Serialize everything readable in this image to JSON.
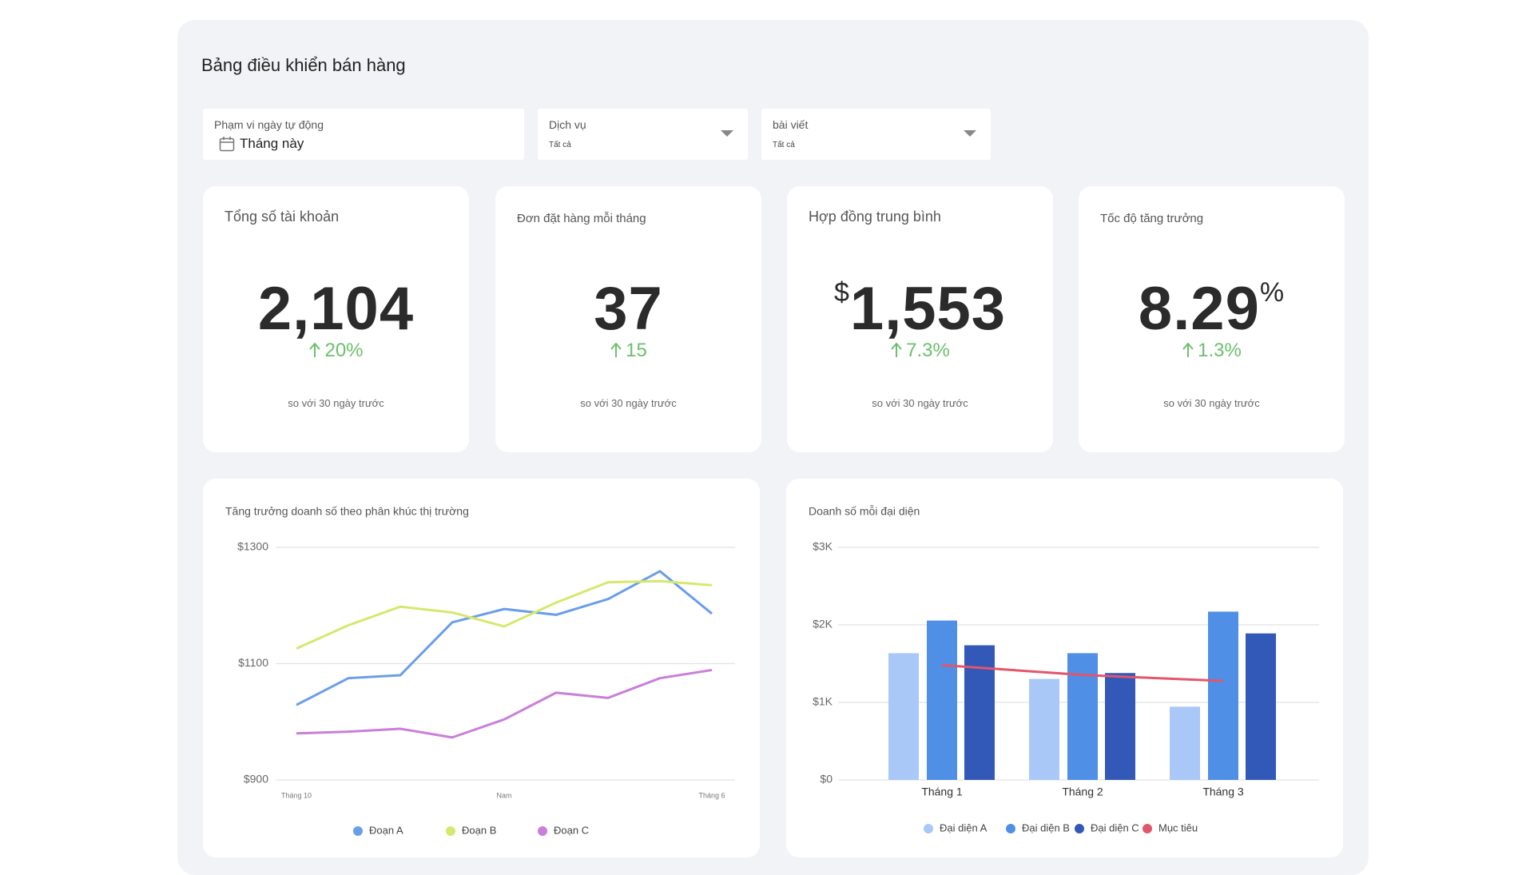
{
  "header": {
    "title": "Bảng điều khiển bán hàng"
  },
  "filters": [
    {
      "label": "Phạm vi ngày tự động",
      "value": "Tháng này"
    },
    {
      "label": "Dịch vụ",
      "value": "Tất cả"
    },
    {
      "label": "bài viết",
      "value": "Tất cả"
    }
  ],
  "kpis": [
    {
      "title": "Tổng số tài khoản",
      "value": "2,104",
      "delta": "20%",
      "note": "so với 30 ngày trước"
    },
    {
      "title": "Đơn đặt hàng mỗi tháng",
      "value": "37",
      "delta": "15",
      "note": "so với 30 ngày trước"
    },
    {
      "title": "Hợp đồng trung bình",
      "prefix": "$",
      "value": "1,553",
      "delta": "7.3%",
      "note": "so với 30 ngày trước"
    },
    {
      "title": "Tốc độ tăng trưởng",
      "value": "8.29",
      "suffix": "%",
      "delta": "1.3%",
      "note": "so với 30 ngày trước"
    }
  ],
  "chart_data": [
    {
      "type": "line",
      "title": "Tăng trưởng doanh số theo phân khúc thị trường",
      "categories": [
        "Tháng 10",
        null,
        null,
        null,
        "Nam",
        null,
        null,
        null,
        "Tháng 6"
      ],
      "series": [
        {
          "name": "Đoạn A",
          "color": "#6a9ee8",
          "values": [
            1029,
            1075,
            1080,
            1171,
            1194,
            1184,
            1211,
            1259,
            1186
          ]
        },
        {
          "name": "Đoạn B",
          "color": "#d6e86c",
          "values": [
            1126,
            1166,
            1198,
            1188,
            1164,
            1205,
            1240,
            1242,
            1235
          ]
        },
        {
          "name": "Đoạn C",
          "color": "#c97fd8",
          "values": [
            980,
            983,
            988,
            973,
            1004,
            1050,
            1041,
            1075,
            1089
          ]
        }
      ],
      "ylim": [
        900,
        1300
      ],
      "yticks": [
        {
          "value": 900,
          "label": "$900"
        },
        {
          "value": 1100,
          "label": "$1100"
        },
        {
          "value": 1300,
          "label": "$1300"
        }
      ],
      "grid": true,
      "legend": "bottom"
    },
    {
      "type": "bar",
      "title": "Doanh số mỗi đại diện",
      "categories": [
        "Tháng 1",
        "Tháng 2",
        "Tháng 3"
      ],
      "series": [
        {
          "name": "Đại diện A",
          "color": "#a9c8f7",
          "values": [
            1635,
            1303,
            945
          ]
        },
        {
          "name": "Đại diện B",
          "color": "#4f8fe6",
          "values": [
            2056,
            1635,
            2171
          ]
        },
        {
          "name": "Đại diện C",
          "color": "#3259b8",
          "values": [
            1737,
            1379,
            1890
          ]
        },
        {
          "name": "Mục tiêu",
          "color": "#e2566a",
          "type": "line",
          "values": [
            1481,
            1354,
            1277
          ]
        }
      ],
      "ylim": [
        0,
        3000
      ],
      "yticks": [
        {
          "value": 0,
          "label": "$0"
        },
        {
          "value": 1000,
          "label": "$1K"
        },
        {
          "value": 2000,
          "label": "$2K"
        },
        {
          "value": 3000,
          "label": "$3K"
        }
      ],
      "grid": true,
      "legend": "bottom"
    }
  ]
}
